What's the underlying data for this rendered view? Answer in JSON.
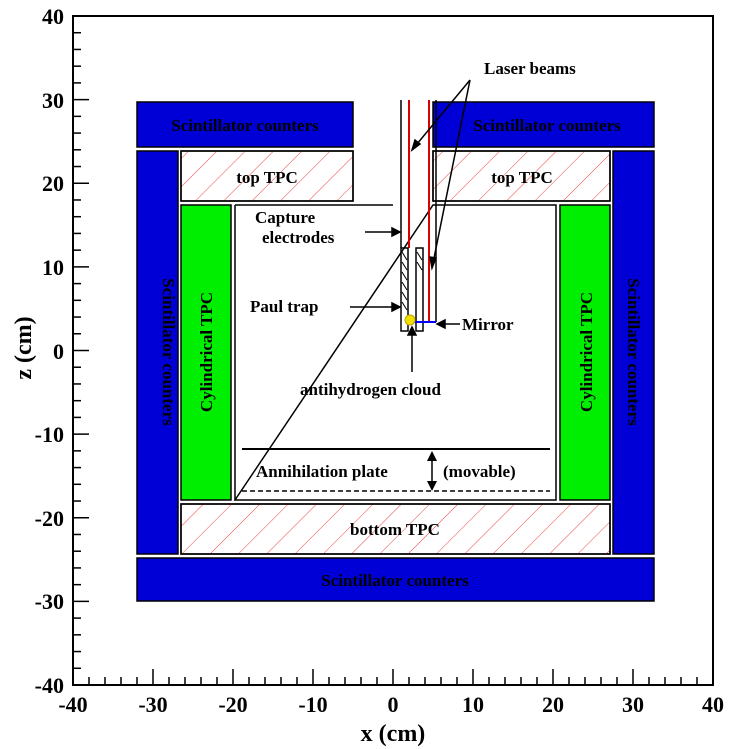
{
  "figure": {
    "x_axis_title": "x (cm)",
    "y_axis_title": "z (cm)",
    "x_range": [
      -40,
      40
    ],
    "y_range": [
      -40,
      40
    ],
    "x_tick_labels": [
      "-40",
      "-30",
      "-20",
      "-10",
      "0",
      "10",
      "20",
      "30",
      "40"
    ],
    "y_tick_labels": [
      "40",
      "30",
      "20",
      "10",
      "0",
      "-10",
      "-20",
      "-30",
      "-40"
    ]
  },
  "components": {
    "scint_top_left": "Scintillator counters",
    "scint_top_right": "Scintillator counters",
    "scint_left": "Scintillator counters",
    "scint_right": "Scintillator counters",
    "scint_bottom": "Scintillator counters",
    "top_tpc_left": "top TPC",
    "top_tpc_right": "top TPC",
    "cyl_tpc_left": "Cylindrical TPC",
    "cyl_tpc_right": "Cylindrical TPC",
    "bottom_tpc": "bottom TPC"
  },
  "annotations": {
    "laser_beams": "Laser beams",
    "capture_line1": "Capture",
    "capture_line2": "electrodes",
    "paul_trap": "Paul trap",
    "mirror": "Mirror",
    "antihydrogen": "antihydrogen cloud",
    "annihilation_plate": "Annihilation plate",
    "movable": "(movable)"
  },
  "colors": {
    "scintillator": "#0000d6",
    "cylindrical_tpc": "#00ee00",
    "hatch": "#ee4444",
    "laser": "#dd0000",
    "mirror_beam": "#0000ff",
    "cloud": "#f0e000"
  }
}
